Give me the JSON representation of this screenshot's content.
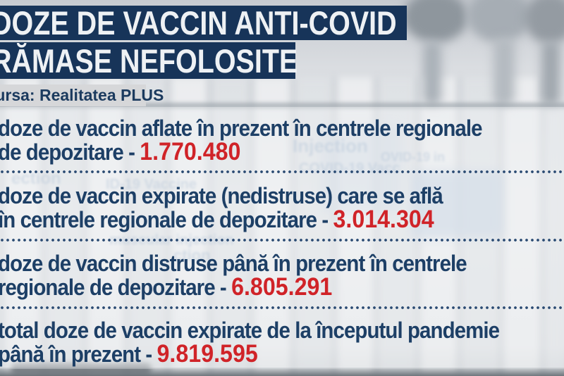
{
  "header": {
    "title_line1": "DOZE DE VACCIN ANTI-COVID",
    "title_line2": "RĂMASE NEFOLOSITE",
    "source_label": "Sursa: Realitatea PLUS"
  },
  "colors": {
    "headline_bar": "#173459",
    "body_text": "#1d3f66",
    "value_red": "#d02328",
    "source_bg": "#d6d7d9"
  },
  "items": [
    {
      "line1": "doze de vaccin aflate în prezent în centrele regionale",
      "line2_prefix": "de depozitare - ",
      "value": "1.770.480"
    },
    {
      "line1": "doze de vaccin expirate (nedistruse) care se află",
      "line2_prefix": "în centrele regionale de depozitare - ",
      "value": "3.014.304"
    },
    {
      "line1": "doze de vaccin distruse până în prezent în centrele",
      "line2_prefix": "regionale de depozitare - ",
      "value": "6.805.291"
    },
    {
      "line1": "total doze de vaccin expirate de la începutul pandemie",
      "line2_prefix": "până în prezent - ",
      "value": "9.819.595"
    }
  ],
  "background_labels": {
    "a": "Injection",
    "b": "COVID-19 Vacc",
    "c": "OVID-19 in",
    "d": "ection",
    "e": "ID-19 Vaccine",
    "f": "muscular injection",
    "g": "ction"
  }
}
